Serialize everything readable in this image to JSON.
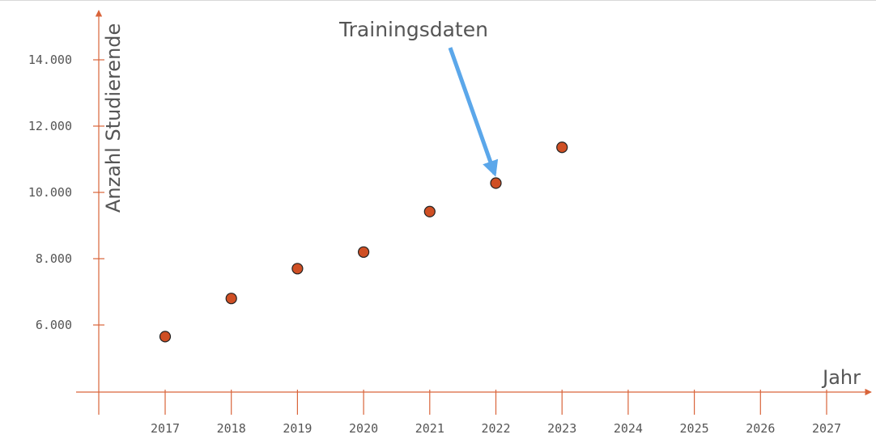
{
  "chart_data": {
    "type": "scatter",
    "title": "",
    "xlabel": "Jahr",
    "ylabel": "Anzahl Studierende",
    "x_ticks": [
      "2017",
      "2018",
      "2019",
      "2020",
      "2021",
      "2022",
      "2023",
      "2024",
      "2025",
      "2026",
      "2027"
    ],
    "y_ticks": [
      "6.000",
      "8.000",
      "10.000",
      "12.000",
      "14.000"
    ],
    "y_tick_values": [
      6000,
      8000,
      10000,
      12000,
      14000
    ],
    "xlim": [
      2016.1,
      2027.7
    ],
    "ylim": [
      4000,
      15500
    ],
    "grid": false,
    "series": [
      {
        "x": [
          2017,
          2018,
          2019,
          2020,
          2021,
          2022,
          2023
        ],
        "y": [
          5650,
          6800,
          7700,
          8200,
          9420,
          10280,
          11360
        ]
      }
    ],
    "annotation": {
      "text": "Trainingsdaten",
      "points_to_x": 2022,
      "points_to_y": 10280
    },
    "colors": {
      "axis": "#d9643a",
      "marker_fill": "#cf4f24",
      "marker_stroke": "#222222",
      "arrow": "#5ba7ea"
    }
  }
}
